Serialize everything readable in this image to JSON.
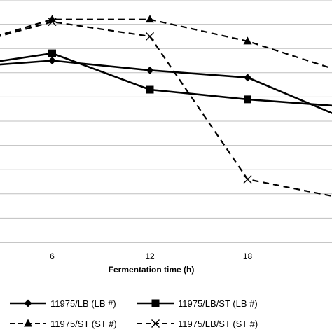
{
  "chart_data": {
    "type": "line",
    "title": "",
    "xlabel": "Fermentation time (h)",
    "ylabel": "",
    "x_ticks": [
      6,
      12,
      18
    ],
    "xlim": [
      0,
      24
    ],
    "ylim": [
      0,
      10
    ],
    "grid": true,
    "legend_position": "bottom",
    "series": [
      {
        "name": "11975/LB (LB #)",
        "marker": "diamond",
        "dash": "solid",
        "x": [
          0,
          6,
          12,
          18,
          24
        ],
        "y": [
          7.2,
          7.5,
          7.1,
          6.8,
          5.1
        ]
      },
      {
        "name": "11975/LB/ST (LB #)",
        "marker": "square",
        "dash": "solid",
        "x": [
          0,
          6,
          12,
          18,
          24
        ],
        "y": [
          7.2,
          7.8,
          6.3,
          5.9,
          5.6
        ]
      },
      {
        "name": "11975/ST (ST #)",
        "marker": "triangle",
        "dash": "dashed",
        "x": [
          0,
          6,
          12,
          18,
          24
        ],
        "y": [
          8.0,
          9.2,
          9.2,
          8.3,
          7.0
        ]
      },
      {
        "name": "11975/LB/ST (ST #)",
        "marker": "x",
        "dash": "dashed",
        "x": [
          0,
          6,
          12,
          18,
          24
        ],
        "y": [
          8.0,
          9.1,
          8.5,
          2.6,
          1.8
        ]
      }
    ]
  }
}
